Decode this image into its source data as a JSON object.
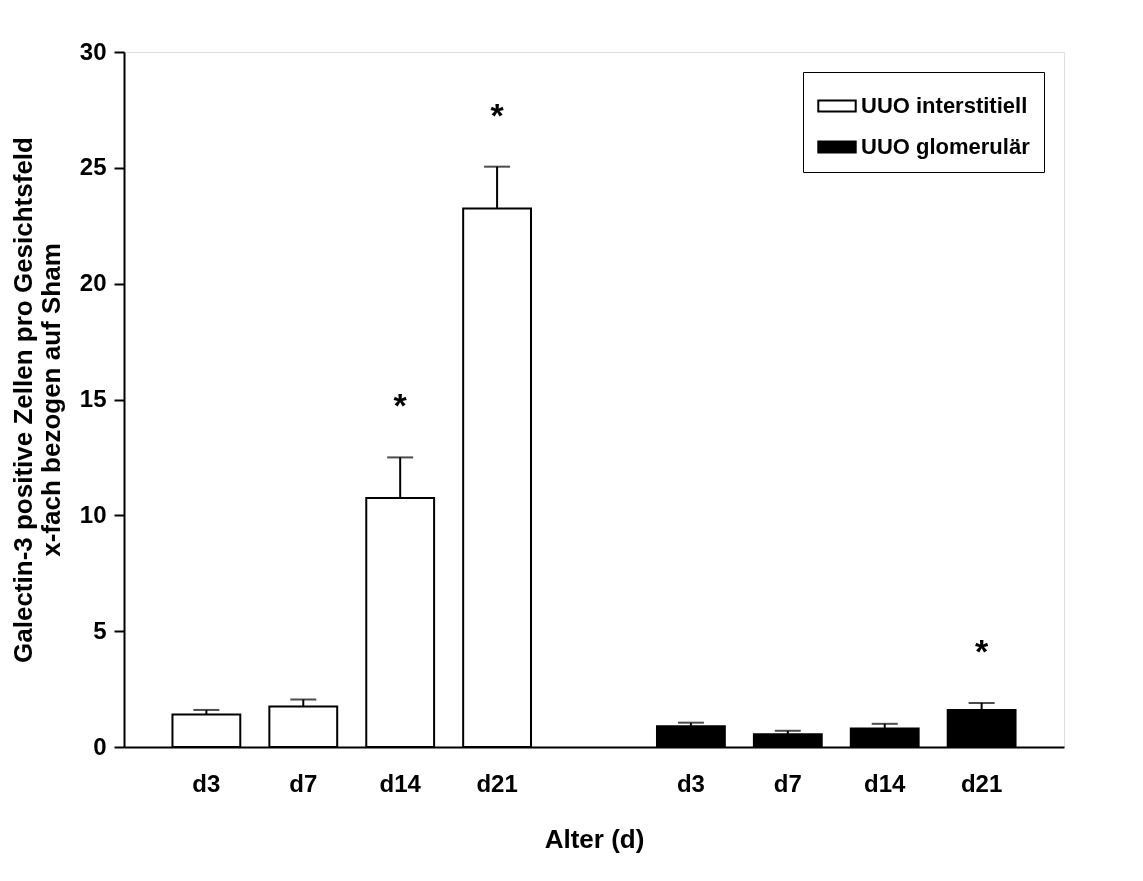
{
  "chart_data": {
    "type": "bar",
    "xlabel": "Alter (d)",
    "ylabel": "Galectin-3 positive Zellen pro Gesichtsfeld\nx-fach bezogen auf Sham",
    "categories": [
      "d3",
      "d7",
      "d14",
      "d21",
      null,
      "d3",
      "d7",
      "d14",
      "d21"
    ],
    "series": [
      {
        "name": "UUO interstitiell",
        "color": "#ffffff",
        "values": [
          1.4,
          1.75,
          10.75,
          23.25,
          null,
          null,
          null,
          null,
          null
        ],
        "errors": [
          [
            1.4,
            1.6
          ],
          [
            1.75,
            2.05
          ],
          [
            10.75,
            12.5
          ],
          [
            23.25,
            25.05
          ],
          null,
          null,
          null,
          null,
          null
        ],
        "value_labels": [
          null,
          null,
          "*",
          "*",
          null,
          null,
          null,
          null,
          null
        ]
      },
      {
        "name": "UUO glomerulär",
        "color": "#000000",
        "values": [
          null,
          null,
          null,
          null,
          null,
          0.9,
          0.55,
          0.8,
          1.6
        ],
        "errors": [
          null,
          null,
          null,
          null,
          null,
          [
            0.9,
            1.05
          ],
          [
            0.55,
            0.7
          ],
          [
            0.8,
            1.0
          ],
          [
            1.6,
            1.9
          ]
        ],
        "value_labels": [
          null,
          null,
          null,
          null,
          null,
          null,
          null,
          null,
          "*"
        ]
      }
    ],
    "ylim": [
      0,
      30
    ],
    "yticks": [
      0,
      5,
      10,
      15,
      20,
      25,
      30
    ],
    "grid": false,
    "legend": "top right"
  }
}
